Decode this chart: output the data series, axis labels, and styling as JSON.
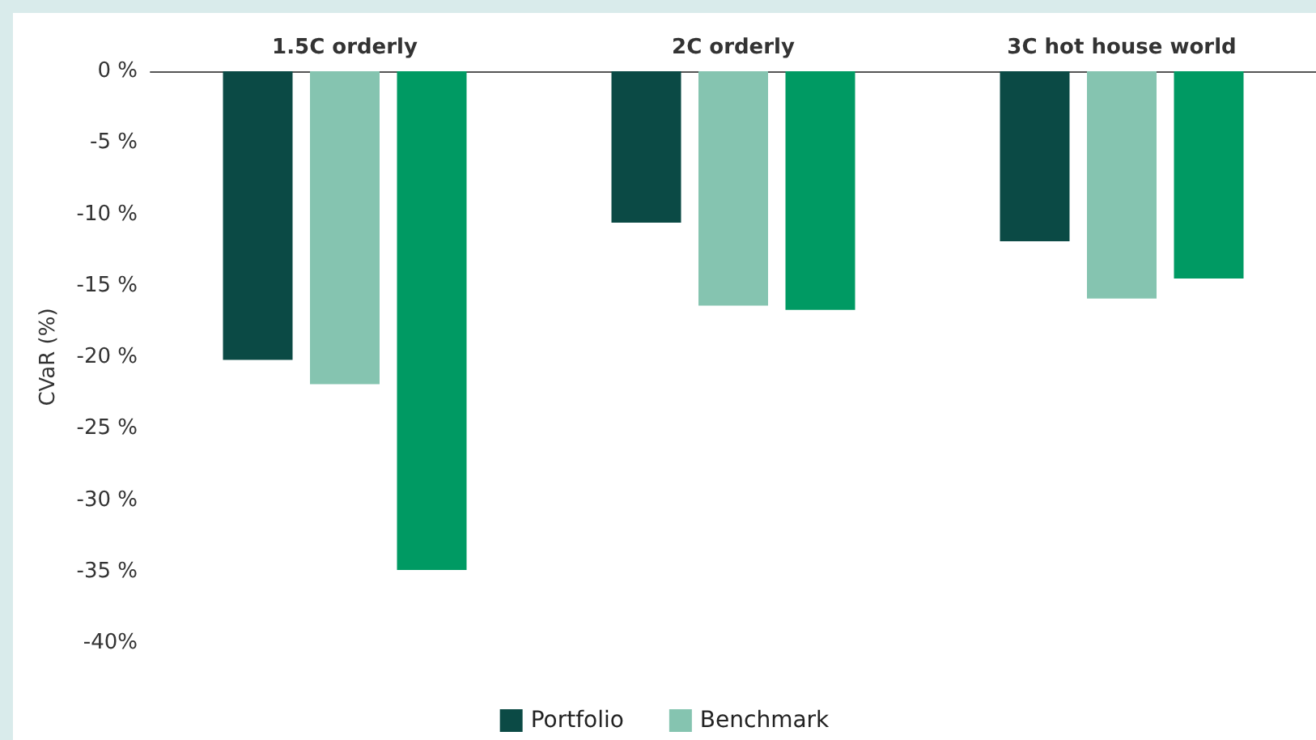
{
  "chart_data": {
    "type": "bar",
    "ylabel": "CVaR (%)",
    "categories": [
      "1.5C orderly",
      "2C orderly",
      "3C hot house world"
    ],
    "series": [
      {
        "name": "Portfolio",
        "color": "#0b4a45",
        "values": [
          -20.2,
          -10.6,
          -11.9
        ]
      },
      {
        "name": "Benchmark",
        "color": "#85c4b0",
        "values": [
          -21.9,
          -16.4,
          -15.9
        ]
      },
      {
        "color": "#009a63",
        "values": [
          -34.9,
          -16.7,
          -14.5
        ]
      }
    ],
    "ylim": [
      -40,
      0
    ],
    "yticks": [
      {
        "value": 0,
        "label": "0 %"
      },
      {
        "value": -5,
        "label": "-5 %"
      },
      {
        "value": -10,
        "label": "-10 %"
      },
      {
        "value": -15,
        "label": "-15 %"
      },
      {
        "value": -20,
        "label": "-20 %"
      },
      {
        "value": -25,
        "label": "-25 %"
      },
      {
        "value": -30,
        "label": "-30 %"
      },
      {
        "value": -35,
        "label": "-35 %"
      },
      {
        "value": -40,
        "label": "-40%"
      }
    ],
    "grid": false,
    "legend": "bottom"
  }
}
